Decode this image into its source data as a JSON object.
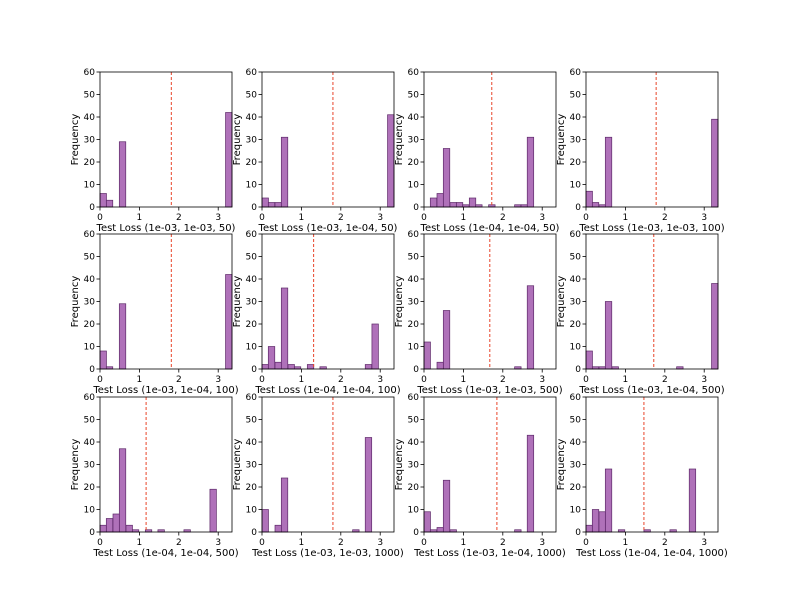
{
  "style": {
    "bar_fill": "#9b4ea8",
    "bar_stroke": "#5e2a6a",
    "mean_line": "#e8452a"
  },
  "chart_data": [
    {
      "type": "bar",
      "xlabel": "Test Loss (1e-03, 1e-03, 50)",
      "ylabel": "Frequency",
      "ylim": [
        0,
        60
      ],
      "xlim": [
        0,
        3.35
      ],
      "bin_width": 0.1639,
      "xticks": [
        0,
        1,
        2,
        3
      ],
      "yticks": [
        0,
        10,
        20,
        30,
        40,
        50,
        60
      ],
      "mean": 1.81,
      "bars": [
        {
          "x": 0.0,
          "h": 6
        },
        {
          "x": 0.16,
          "h": 3
        },
        {
          "x": 0.49,
          "h": 29
        },
        {
          "x": 3.44,
          "h": 42
        }
      ]
    },
    {
      "type": "bar",
      "xlabel": "Test Loss (1e-03, 1e-04, 50)",
      "ylabel": "Frequency",
      "ylim": [
        0,
        60
      ],
      "xlim": [
        0,
        3.35
      ],
      "bin_width": 0.1639,
      "xticks": [
        0,
        1,
        2,
        3
      ],
      "yticks": [
        0,
        10,
        20,
        30,
        40,
        50,
        60
      ],
      "mean": 1.8,
      "bars": [
        {
          "x": 0.0,
          "h": 4
        },
        {
          "x": 0.16,
          "h": 2
        },
        {
          "x": 0.33,
          "h": 2
        },
        {
          "x": 0.49,
          "h": 31
        },
        {
          "x": 3.44,
          "h": 41
        }
      ]
    },
    {
      "type": "bar",
      "xlabel": "Test Loss (1e-04, 1e-04, 50)",
      "ylabel": "Frequency",
      "ylim": [
        0,
        60
      ],
      "xlim": [
        0,
        3.35
      ],
      "bin_width": 0.1639,
      "xticks": [
        0,
        1,
        2,
        3
      ],
      "yticks": [
        0,
        10,
        20,
        30,
        40,
        50,
        60
      ],
      "mean": 1.72,
      "bars": [
        {
          "x": 0.16,
          "h": 4
        },
        {
          "x": 0.33,
          "h": 6
        },
        {
          "x": 0.49,
          "h": 26
        },
        {
          "x": 0.66,
          "h": 2
        },
        {
          "x": 0.82,
          "h": 2
        },
        {
          "x": 0.98,
          "h": 1
        },
        {
          "x": 1.15,
          "h": 4
        },
        {
          "x": 1.31,
          "h": 1
        },
        {
          "x": 1.64,
          "h": 1
        },
        {
          "x": 2.3,
          "h": 1
        },
        {
          "x": 2.46,
          "h": 1
        },
        {
          "x": 2.62,
          "h": 31
        }
      ]
    },
    {
      "type": "bar",
      "xlabel": "Test Loss (1e-03, 1e-03, 100)",
      "ylabel": "Frequency",
      "ylim": [
        0,
        60
      ],
      "xlim": [
        0,
        3.35
      ],
      "bin_width": 0.1639,
      "xticks": [
        0,
        1,
        2,
        3
      ],
      "yticks": [
        0,
        10,
        20,
        30,
        40,
        50,
        60
      ],
      "mean": 1.78,
      "bars": [
        {
          "x": 0.0,
          "h": 7
        },
        {
          "x": 0.16,
          "h": 2
        },
        {
          "x": 0.33,
          "h": 1
        },
        {
          "x": 0.49,
          "h": 31
        },
        {
          "x": 3.44,
          "h": 39
        }
      ]
    },
    {
      "type": "bar",
      "xlabel": "Test Loss (1e-03, 1e-04, 100)",
      "ylabel": "Frequency",
      "ylim": [
        0,
        60
      ],
      "xlim": [
        0,
        3.35
      ],
      "bin_width": 0.1639,
      "xticks": [
        0,
        1,
        2,
        3
      ],
      "yticks": [
        0,
        10,
        20,
        30,
        40,
        50,
        60
      ],
      "mean": 1.81,
      "bars": [
        {
          "x": 0.0,
          "h": 8
        },
        {
          "x": 0.16,
          "h": 1
        },
        {
          "x": 0.49,
          "h": 29
        },
        {
          "x": 3.44,
          "h": 42
        }
      ]
    },
    {
      "type": "bar",
      "xlabel": "Test Loss (1e-04, 1e-04, 100)",
      "ylabel": "Frequency",
      "ylim": [
        0,
        60
      ],
      "xlim": [
        0,
        3.35
      ],
      "bin_width": 0.1639,
      "xticks": [
        0,
        1,
        2,
        3
      ],
      "yticks": [
        0,
        10,
        20,
        30,
        40,
        50,
        60
      ],
      "mean": 1.31,
      "bars": [
        {
          "x": 0.0,
          "h": 2
        },
        {
          "x": 0.16,
          "h": 10
        },
        {
          "x": 0.33,
          "h": 3
        },
        {
          "x": 0.49,
          "h": 36
        },
        {
          "x": 0.66,
          "h": 2
        },
        {
          "x": 0.82,
          "h": 1
        },
        {
          "x": 1.15,
          "h": 2
        },
        {
          "x": 1.47,
          "h": 1
        },
        {
          "x": 2.62,
          "h": 2
        },
        {
          "x": 2.79,
          "h": 20
        }
      ]
    },
    {
      "type": "bar",
      "xlabel": "Test Loss (1e-03, 1e-03, 500)",
      "ylabel": "Frequency",
      "ylim": [
        0,
        60
      ],
      "xlim": [
        0,
        3.35
      ],
      "bin_width": 0.1639,
      "xticks": [
        0,
        1,
        2,
        3
      ],
      "yticks": [
        0,
        10,
        20,
        30,
        40,
        50,
        60
      ],
      "mean": 1.67,
      "bars": [
        {
          "x": 0.0,
          "h": 12
        },
        {
          "x": 0.33,
          "h": 3
        },
        {
          "x": 0.49,
          "h": 26
        },
        {
          "x": 2.3,
          "h": 1
        },
        {
          "x": 2.62,
          "h": 37
        }
      ]
    },
    {
      "type": "bar",
      "xlabel": "Test Loss (1e-03, 1e-04, 500)",
      "ylabel": "Frequency",
      "ylim": [
        0,
        60
      ],
      "xlim": [
        0,
        3.35
      ],
      "bin_width": 0.1639,
      "xticks": [
        0,
        1,
        2,
        3
      ],
      "yticks": [
        0,
        10,
        20,
        30,
        40,
        50,
        60
      ],
      "mean": 1.72,
      "bars": [
        {
          "x": 0.0,
          "h": 8
        },
        {
          "x": 0.16,
          "h": 1
        },
        {
          "x": 0.33,
          "h": 1
        },
        {
          "x": 0.49,
          "h": 30
        },
        {
          "x": 0.66,
          "h": 1
        },
        {
          "x": 2.3,
          "h": 1
        },
        {
          "x": 3.44,
          "h": 38
        }
      ]
    },
    {
      "type": "bar",
      "xlabel": "Test Loss (1e-04, 1e-04, 500)",
      "ylabel": "Frequency",
      "ylim": [
        0,
        60
      ],
      "xlim": [
        0,
        3.35
      ],
      "bin_width": 0.1639,
      "xticks": [
        0,
        1,
        2,
        3
      ],
      "yticks": [
        0,
        10,
        20,
        30,
        40,
        50,
        60
      ],
      "mean": 1.17,
      "bars": [
        {
          "x": 0.0,
          "h": 3
        },
        {
          "x": 0.16,
          "h": 6
        },
        {
          "x": 0.33,
          "h": 8
        },
        {
          "x": 0.49,
          "h": 37
        },
        {
          "x": 0.66,
          "h": 3
        },
        {
          "x": 0.82,
          "h": 1
        },
        {
          "x": 1.15,
          "h": 1
        },
        {
          "x": 1.47,
          "h": 1
        },
        {
          "x": 2.13,
          "h": 1
        },
        {
          "x": 2.79,
          "h": 19
        }
      ]
    },
    {
      "type": "bar",
      "xlabel": "Test Loss (1e-03, 1e-03, 1000)",
      "ylabel": "Frequency",
      "ylim": [
        0,
        60
      ],
      "xlim": [
        0,
        3.35
      ],
      "bin_width": 0.1639,
      "xticks": [
        0,
        1,
        2,
        3
      ],
      "yticks": [
        0,
        10,
        20,
        30,
        40,
        50,
        60
      ],
      "mean": 1.8,
      "bars": [
        {
          "x": 0.0,
          "h": 10
        },
        {
          "x": 0.33,
          "h": 3
        },
        {
          "x": 0.49,
          "h": 24
        },
        {
          "x": 2.3,
          "h": 1
        },
        {
          "x": 2.62,
          "h": 42
        }
      ]
    },
    {
      "type": "bar",
      "xlabel": "Test Loss (1e-03, 1e-04, 1000)",
      "ylabel": "Frequency",
      "ylim": [
        0,
        60
      ],
      "xlim": [
        0,
        3.35
      ],
      "bin_width": 0.1639,
      "xticks": [
        0,
        1,
        2,
        3
      ],
      "yticks": [
        0,
        10,
        20,
        30,
        40,
        50,
        60
      ],
      "mean": 1.85,
      "bars": [
        {
          "x": 0.0,
          "h": 9
        },
        {
          "x": 0.16,
          "h": 1
        },
        {
          "x": 0.33,
          "h": 2
        },
        {
          "x": 0.49,
          "h": 23
        },
        {
          "x": 0.66,
          "h": 1
        },
        {
          "x": 2.3,
          "h": 1
        },
        {
          "x": 2.62,
          "h": 43
        }
      ]
    },
    {
      "type": "bar",
      "xlabel": "Test Loss (1e-04, 1e-04, 1000)",
      "ylabel": "Frequency",
      "ylim": [
        0,
        60
      ],
      "xlim": [
        0,
        3.35
      ],
      "bin_width": 0.1639,
      "xticks": [
        0,
        1,
        2,
        3
      ],
      "yticks": [
        0,
        10,
        20,
        30,
        40,
        50,
        60
      ],
      "mean": 1.47,
      "bars": [
        {
          "x": 0.0,
          "h": 3
        },
        {
          "x": 0.16,
          "h": 10
        },
        {
          "x": 0.33,
          "h": 9
        },
        {
          "x": 0.49,
          "h": 28
        },
        {
          "x": 0.82,
          "h": 1
        },
        {
          "x": 1.47,
          "h": 1
        },
        {
          "x": 2.13,
          "h": 1
        },
        {
          "x": 2.62,
          "h": 28
        }
      ]
    }
  ]
}
